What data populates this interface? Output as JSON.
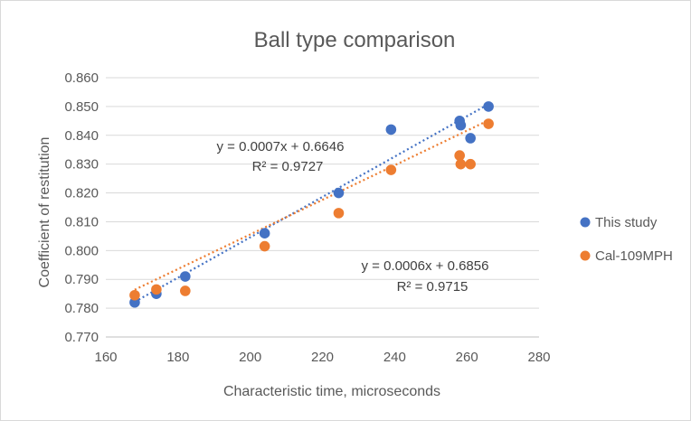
{
  "chart_data": {
    "type": "scatter",
    "title": "Ball type comparison",
    "xlabel": "Characteristic time, microseconds",
    "ylabel": "Coefficient of restitution",
    "xlim": [
      160,
      280
    ],
    "ylim": [
      0.77,
      0.86
    ],
    "x_ticks": [
      "160",
      "180",
      "200",
      "220",
      "240",
      "260",
      "280"
    ],
    "y_ticks": [
      "0.770",
      "0.780",
      "0.790",
      "0.800",
      "0.810",
      "0.820",
      "0.830",
      "0.840",
      "0.850",
      "0.860"
    ],
    "grid": "horizontal",
    "legend_position": "right",
    "series": [
      {
        "name": "This study",
        "color": "#4472c4",
        "points": [
          [
            168,
            0.782
          ],
          [
            174,
            0.785
          ],
          [
            182,
            0.791
          ],
          [
            204,
            0.806
          ],
          [
            224.5,
            0.82
          ],
          [
            239,
            0.842
          ],
          [
            258,
            0.845
          ],
          [
            258.3,
            0.8435
          ],
          [
            261,
            0.839
          ],
          [
            266,
            0.85
          ]
        ],
        "trendline": {
          "slope": 0.0007,
          "intercept": 0.6646,
          "x_range": [
            168,
            266
          ],
          "equation": "y = 0.0007x + 0.6646",
          "r2": "R² = 0.9727"
        }
      },
      {
        "name": "Cal-109MPH",
        "color": "#ed7d31",
        "points": [
          [
            168,
            0.7845
          ],
          [
            174,
            0.7865
          ],
          [
            182,
            0.786
          ],
          [
            204,
            0.8015
          ],
          [
            224.5,
            0.813
          ],
          [
            239,
            0.828
          ],
          [
            258,
            0.833
          ],
          [
            258.3,
            0.83
          ],
          [
            261,
            0.83
          ],
          [
            266,
            0.844
          ]
        ],
        "trendline": {
          "slope": 0.0006,
          "intercept": 0.6856,
          "x_range": [
            168,
            266
          ],
          "equation": "y = 0.0006x + 0.6856",
          "r2": "R² = 0.9715"
        }
      }
    ]
  }
}
